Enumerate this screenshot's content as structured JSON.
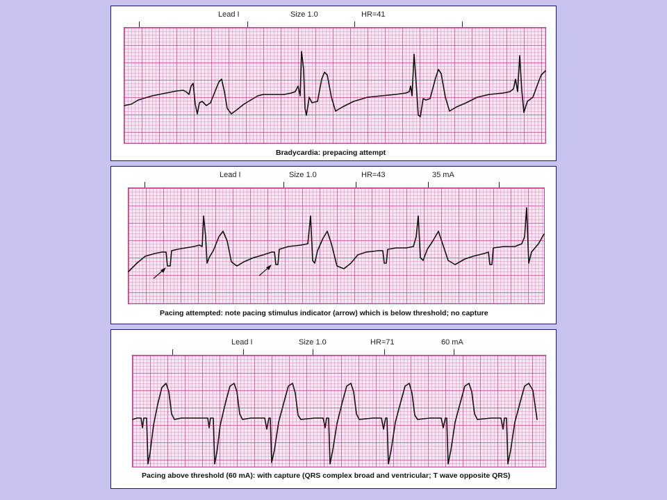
{
  "panels": [
    {
      "lead": "Lead I",
      "size": "Size 1.0",
      "hr": "HR=41",
      "current": "",
      "caption": "Bradycardia: prepacing attempt"
    },
    {
      "lead": "Lead I",
      "size": "Size 1.0",
      "hr": "HR=43",
      "current": "35 mA",
      "caption": "Pacing attempted: note pacing stimulus indicator (arrow) which is below threshold; no capture"
    },
    {
      "lead": "Lead I",
      "size": "Size 1.0",
      "hr": "HR=71",
      "current": "60 mA",
      "caption": "Pacing above threshold (60 mA): with capture (QRS complex broad and ventricular; T wave opposite QRS)"
    }
  ],
  "colors": {
    "background": "#c8c4f0",
    "grid": "#c62e82",
    "trace": "#111111",
    "panel_border": "#1a1a6e"
  }
}
